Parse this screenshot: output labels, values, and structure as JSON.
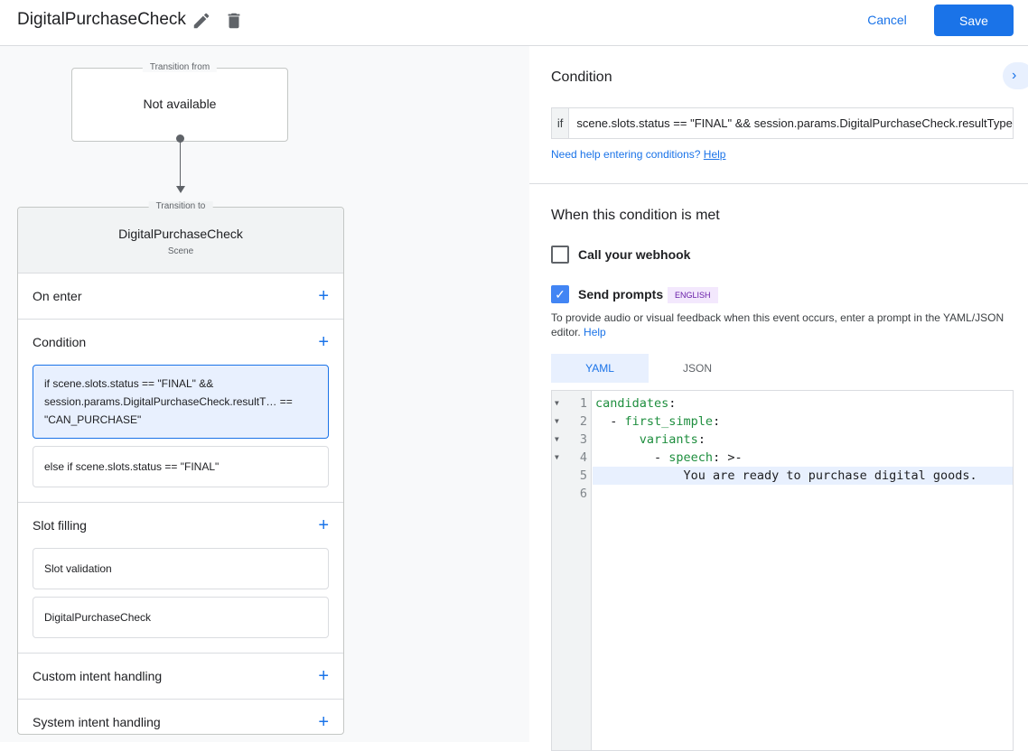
{
  "header": {
    "title": "DigitalPurchaseCheck",
    "cancel_label": "Cancel",
    "save_label": "Save"
  },
  "flow": {
    "from_legend": "Transition from",
    "from_value": "Not available",
    "to_legend": "Transition to",
    "scene_name": "DigitalPurchaseCheck",
    "scene_type": "Scene",
    "sections": {
      "on_enter": "On enter",
      "condition": "Condition",
      "conditions": [
        "if scene.slots.status == \"FINAL\" && session.params.DigitalPurchaseCheck.resultT… == \"CAN_PURCHASE\"",
        "else if scene.slots.status == \"FINAL\""
      ],
      "slot_filling": "Slot filling",
      "slots": [
        "Slot validation",
        "DigitalPurchaseCheck"
      ],
      "custom_intent": "Custom intent handling",
      "system_intent": "System intent handling"
    }
  },
  "panel": {
    "condition_title": "Condition",
    "if_label": "if",
    "expression": "scene.slots.status == \"FINAL\" && session.params.DigitalPurchaseCheck.resultType == \"CAN_PURCHASE\"",
    "help_text": "Need help entering conditions?",
    "help_link": "Help",
    "met_title": "When this condition is met",
    "webhook_label": "Call your webhook",
    "webhook_checked": false,
    "prompts_label": "Send prompts",
    "prompts_checked": true,
    "language_badge": "ENGLISH",
    "desc": "To provide audio or visual feedback when this event occurs, enter a prompt in the YAML/JSON editor.",
    "desc_link": "Help",
    "tabs": [
      "YAML",
      "JSON"
    ],
    "active_tab": "YAML",
    "code_lines": [
      {
        "n": "1",
        "key": "candidates",
        "rest": ":",
        "indent": "",
        "fold": true
      },
      {
        "n": "2",
        "key": "first_simple",
        "rest": ":",
        "indent": "  - ",
        "fold": true
      },
      {
        "n": "3",
        "key": "variants",
        "rest": ":",
        "indent": "      ",
        "fold": true
      },
      {
        "n": "4",
        "key": "speech",
        "rest": ": >-",
        "indent": "        - ",
        "fold": true
      },
      {
        "n": "5",
        "key": "",
        "rest": "You are ready to purchase digital goods.",
        "indent": "            ",
        "fold": false
      },
      {
        "n": "6",
        "key": "",
        "rest": "",
        "indent": "",
        "fold": false
      }
    ]
  }
}
